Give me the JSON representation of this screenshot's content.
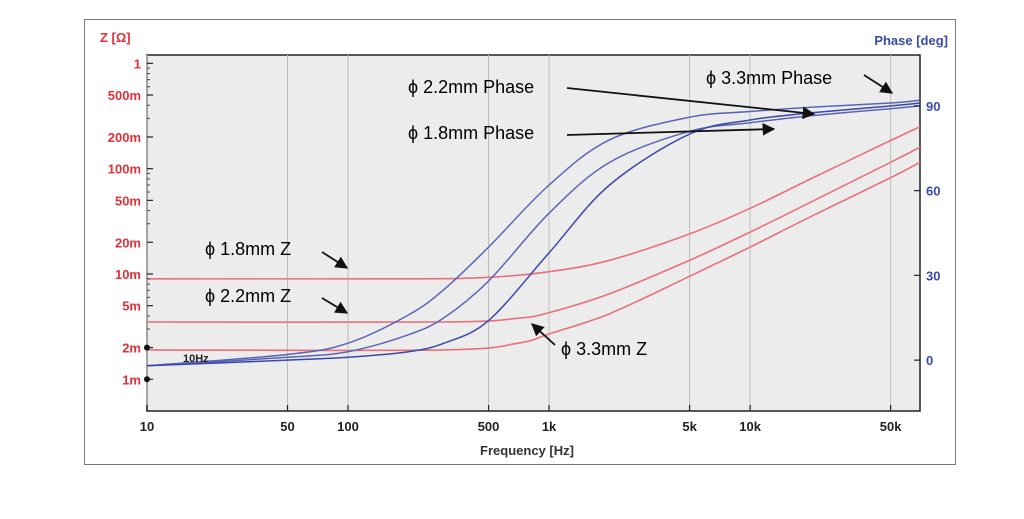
{
  "chart_data": {
    "type": "line",
    "xlabel": "Frequency [Hz]",
    "ylabel_left": "Z [Ω]",
    "ylabel_right": "Phase [deg]",
    "x_scale": "log",
    "xlim": [
      10,
      70000
    ],
    "ylim_left": [
      0.0005,
      1.2
    ],
    "ylim_right": [
      -18,
      108
    ],
    "x_ticks": [
      {
        "value": 10,
        "label": "10"
      },
      {
        "value": 50,
        "label": "50"
      },
      {
        "value": 100,
        "label": "100"
      },
      {
        "value": 500,
        "label": "500"
      },
      {
        "value": 1000,
        "label": "1k"
      },
      {
        "value": 5000,
        "label": "5k"
      },
      {
        "value": 10000,
        "label": "10k"
      },
      {
        "value": 50000,
        "label": "50k"
      }
    ],
    "y_left_ticks": [
      {
        "value": 1,
        "label": "1"
      },
      {
        "value": 0.5,
        "label": "500m"
      },
      {
        "value": 0.2,
        "label": "200m"
      },
      {
        "value": 0.1,
        "label": "100m"
      },
      {
        "value": 0.05,
        "label": "50m"
      },
      {
        "value": 0.02,
        "label": "20m"
      },
      {
        "value": 0.01,
        "label": "10m"
      },
      {
        "value": 0.005,
        "label": "5m"
      },
      {
        "value": 0.002,
        "label": "2m"
      },
      {
        "value": 0.001,
        "label": "1m"
      }
    ],
    "y_right_ticks": [
      {
        "value": 90,
        "label": "90"
      },
      {
        "value": 60,
        "label": "60"
      },
      {
        "value": 30,
        "label": "30"
      },
      {
        "value": 0,
        "label": "0"
      }
    ],
    "series": [
      {
        "name": "ϕ 1.8mm Z",
        "axis": "left",
        "color": "#e8707a",
        "points": [
          [
            10,
            0.009
          ],
          [
            200,
            0.009
          ],
          [
            500,
            0.0093
          ],
          [
            1000,
            0.0105
          ],
          [
            2000,
            0.0135
          ],
          [
            5000,
            0.024
          ],
          [
            10000,
            0.042
          ],
          [
            20000,
            0.08
          ],
          [
            50000,
            0.185
          ],
          [
            70000,
            0.25
          ]
        ]
      },
      {
        "name": "ϕ 2.2mm Z",
        "axis": "left",
        "color": "#e8707a",
        "points": [
          [
            10,
            0.0035
          ],
          [
            300,
            0.0035
          ],
          [
            700,
            0.0038
          ],
          [
            1000,
            0.0043
          ],
          [
            2000,
            0.0065
          ],
          [
            5000,
            0.0135
          ],
          [
            10000,
            0.025
          ],
          [
            20000,
            0.048
          ],
          [
            50000,
            0.115
          ],
          [
            70000,
            0.16
          ]
        ]
      },
      {
        "name": "ϕ 3.3mm Z",
        "axis": "left",
        "color": "#e8707a",
        "points": [
          [
            10,
            0.0019
          ],
          [
            300,
            0.0019
          ],
          [
            700,
            0.0022
          ],
          [
            1000,
            0.0027
          ],
          [
            2000,
            0.0042
          ],
          [
            5000,
            0.0095
          ],
          [
            10000,
            0.018
          ],
          [
            20000,
            0.035
          ],
          [
            50000,
            0.082
          ],
          [
            70000,
            0.115
          ]
        ]
      },
      {
        "name": "ϕ 1.8mm Phase",
        "axis": "right",
        "color": "#5a64b4",
        "points": [
          [
            10,
            -2
          ],
          [
            50,
            1
          ],
          [
            100,
            3
          ],
          [
            200,
            9
          ],
          [
            300,
            15
          ],
          [
            500,
            28
          ],
          [
            1000,
            52
          ],
          [
            2000,
            70
          ],
          [
            5000,
            81
          ],
          [
            10000,
            84
          ],
          [
            20000,
            86.5
          ],
          [
            50000,
            89
          ],
          [
            70000,
            90
          ]
        ]
      },
      {
        "name": "ϕ 2.2mm Phase",
        "axis": "right",
        "color": "#5a64b4",
        "points": [
          [
            10,
            -2
          ],
          [
            50,
            2
          ],
          [
            100,
            6
          ],
          [
            200,
            16
          ],
          [
            300,
            25
          ],
          [
            500,
            40
          ],
          [
            1000,
            62
          ],
          [
            2000,
            78
          ],
          [
            5000,
            86
          ],
          [
            10000,
            88
          ],
          [
            20000,
            89.5
          ],
          [
            50000,
            91
          ],
          [
            70000,
            92
          ]
        ]
      },
      {
        "name": "ϕ 3.3mm Phase",
        "axis": "right",
        "color": "#3c48a8",
        "points": [
          [
            10,
            -2
          ],
          [
            50,
            0
          ],
          [
            100,
            1
          ],
          [
            200,
            3
          ],
          [
            300,
            6
          ],
          [
            500,
            14
          ],
          [
            1000,
            38
          ],
          [
            2000,
            62
          ],
          [
            5000,
            80
          ],
          [
            10000,
            85
          ],
          [
            20000,
            87.5
          ],
          [
            50000,
            90
          ],
          [
            70000,
            91
          ]
        ]
      }
    ],
    "annotations": [
      {
        "text": "ϕ 2.2mm Phase"
      },
      {
        "text": "ϕ 3.3mm Phase"
      },
      {
        "text": "ϕ 1.8mm Phase"
      },
      {
        "text": "ϕ 1.8mm  Z"
      },
      {
        "text": "ϕ 2.2mm  Z"
      },
      {
        "text": "ϕ 3.3mm  Z"
      },
      {
        "text": "10Hz"
      }
    ]
  }
}
